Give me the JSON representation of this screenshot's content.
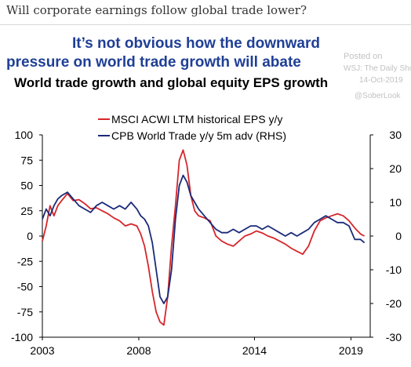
{
  "article_question": "Will corporate earnings follow global trade lower?",
  "headline": {
    "line1": "It’s not obvious how the downward",
    "line2": "pressure on world trade growth will abate"
  },
  "watermark": {
    "posted_on": "Posted on",
    "source": "WSJ: The Daily Shot",
    "date": "14-Oct-2019",
    "handle": "@SoberLook"
  },
  "colors": {
    "headline": "#1f3f96",
    "eps": "#d6262b",
    "trade": "#1a2a78"
  },
  "chart_data": {
    "type": "line",
    "title": "World trade growth and global equity EPS growth",
    "legend_position": "top",
    "x_ticks": [
      "2003",
      "2008",
      "2014",
      "2019"
    ],
    "xlim": [
      2003,
      2020
    ],
    "ylim_left": [
      -100,
      100
    ],
    "y_ticks_left": [
      "100",
      "75",
      "50",
      "25",
      "0",
      "-25",
      "-50",
      "-75",
      "-100"
    ],
    "ylim_right": [
      -30,
      30
    ],
    "y_ticks_right": [
      "30",
      "20",
      "10",
      "0",
      "-10",
      "-20",
      "-30"
    ],
    "grid": false,
    "series": [
      {
        "name": "MSCI ACWI LTM historical EPS y/y",
        "axis": "left",
        "color": "#d6262b",
        "points": [
          [
            2003.0,
            -5
          ],
          [
            2003.2,
            10
          ],
          [
            2003.4,
            30
          ],
          [
            2003.6,
            20
          ],
          [
            2003.8,
            30
          ],
          [
            2004.0,
            35
          ],
          [
            2004.3,
            42
          ],
          [
            2004.6,
            35
          ],
          [
            2004.9,
            36
          ],
          [
            2005.2,
            32
          ],
          [
            2005.5,
            27
          ],
          [
            2005.8,
            28
          ],
          [
            2006.1,
            25
          ],
          [
            2006.4,
            22
          ],
          [
            2006.7,
            18
          ],
          [
            2007.0,
            15
          ],
          [
            2007.3,
            10
          ],
          [
            2007.6,
            12
          ],
          [
            2007.9,
            10
          ],
          [
            2008.1,
            2
          ],
          [
            2008.3,
            -10
          ],
          [
            2008.5,
            -30
          ],
          [
            2008.7,
            -55
          ],
          [
            2008.9,
            -75
          ],
          [
            2009.1,
            -85
          ],
          [
            2009.3,
            -88
          ],
          [
            2009.5,
            -60
          ],
          [
            2009.7,
            -10
          ],
          [
            2009.9,
            30
          ],
          [
            2010.1,
            75
          ],
          [
            2010.3,
            85
          ],
          [
            2010.5,
            70
          ],
          [
            2010.7,
            40
          ],
          [
            2010.9,
            25
          ],
          [
            2011.1,
            20
          ],
          [
            2011.4,
            18
          ],
          [
            2011.7,
            15
          ],
          [
            2012.0,
            0
          ],
          [
            2012.3,
            -5
          ],
          [
            2012.6,
            -8
          ],
          [
            2012.9,
            -10
          ],
          [
            2013.2,
            -5
          ],
          [
            2013.5,
            0
          ],
          [
            2013.8,
            2
          ],
          [
            2014.1,
            5
          ],
          [
            2014.4,
            3
          ],
          [
            2014.7,
            0
          ],
          [
            2015.0,
            -2
          ],
          [
            2015.3,
            -5
          ],
          [
            2015.6,
            -8
          ],
          [
            2015.9,
            -12
          ],
          [
            2016.2,
            -15
          ],
          [
            2016.5,
            -18
          ],
          [
            2016.8,
            -10
          ],
          [
            2017.1,
            5
          ],
          [
            2017.4,
            15
          ],
          [
            2017.7,
            18
          ],
          [
            2018.0,
            20
          ],
          [
            2018.3,
            22
          ],
          [
            2018.6,
            20
          ],
          [
            2018.9,
            15
          ],
          [
            2019.2,
            8
          ],
          [
            2019.5,
            2
          ],
          [
            2019.7,
            0
          ]
        ]
      },
      {
        "name": "CPB World Trade y/y 5m adv (RHS)",
        "axis": "right",
        "color": "#1a2a78",
        "points": [
          [
            2003.0,
            5
          ],
          [
            2003.2,
            8
          ],
          [
            2003.4,
            6
          ],
          [
            2003.6,
            9
          ],
          [
            2003.8,
            11
          ],
          [
            2004.0,
            12
          ],
          [
            2004.3,
            13
          ],
          [
            2004.6,
            11
          ],
          [
            2004.9,
            9
          ],
          [
            2005.2,
            8
          ],
          [
            2005.5,
            7
          ],
          [
            2005.8,
            9
          ],
          [
            2006.1,
            10
          ],
          [
            2006.4,
            9
          ],
          [
            2006.7,
            8
          ],
          [
            2007.0,
            9
          ],
          [
            2007.3,
            8
          ],
          [
            2007.6,
            10
          ],
          [
            2007.9,
            8
          ],
          [
            2008.1,
            6
          ],
          [
            2008.3,
            5
          ],
          [
            2008.5,
            3
          ],
          [
            2008.7,
            -2
          ],
          [
            2008.9,
            -10
          ],
          [
            2009.1,
            -18
          ],
          [
            2009.3,
            -20
          ],
          [
            2009.5,
            -18
          ],
          [
            2009.7,
            -10
          ],
          [
            2009.9,
            5
          ],
          [
            2010.1,
            15
          ],
          [
            2010.3,
            18
          ],
          [
            2010.5,
            16
          ],
          [
            2010.7,
            12
          ],
          [
            2010.9,
            10
          ],
          [
            2011.1,
            8
          ],
          [
            2011.4,
            6
          ],
          [
            2011.7,
            4
          ],
          [
            2012.0,
            2
          ],
          [
            2012.3,
            1
          ],
          [
            2012.6,
            1
          ],
          [
            2012.9,
            2
          ],
          [
            2013.2,
            1
          ],
          [
            2013.5,
            2
          ],
          [
            2013.8,
            3
          ],
          [
            2014.1,
            3
          ],
          [
            2014.4,
            2
          ],
          [
            2014.7,
            3
          ],
          [
            2015.0,
            2
          ],
          [
            2015.3,
            1
          ],
          [
            2015.6,
            0
          ],
          [
            2015.9,
            1
          ],
          [
            2016.2,
            0
          ],
          [
            2016.5,
            1
          ],
          [
            2016.8,
            2
          ],
          [
            2017.1,
            4
          ],
          [
            2017.4,
            5
          ],
          [
            2017.7,
            6
          ],
          [
            2018.0,
            5
          ],
          [
            2018.3,
            4
          ],
          [
            2018.6,
            4
          ],
          [
            2018.9,
            3
          ],
          [
            2019.2,
            -1
          ],
          [
            2019.5,
            -1
          ],
          [
            2019.7,
            -2
          ]
        ]
      }
    ]
  }
}
